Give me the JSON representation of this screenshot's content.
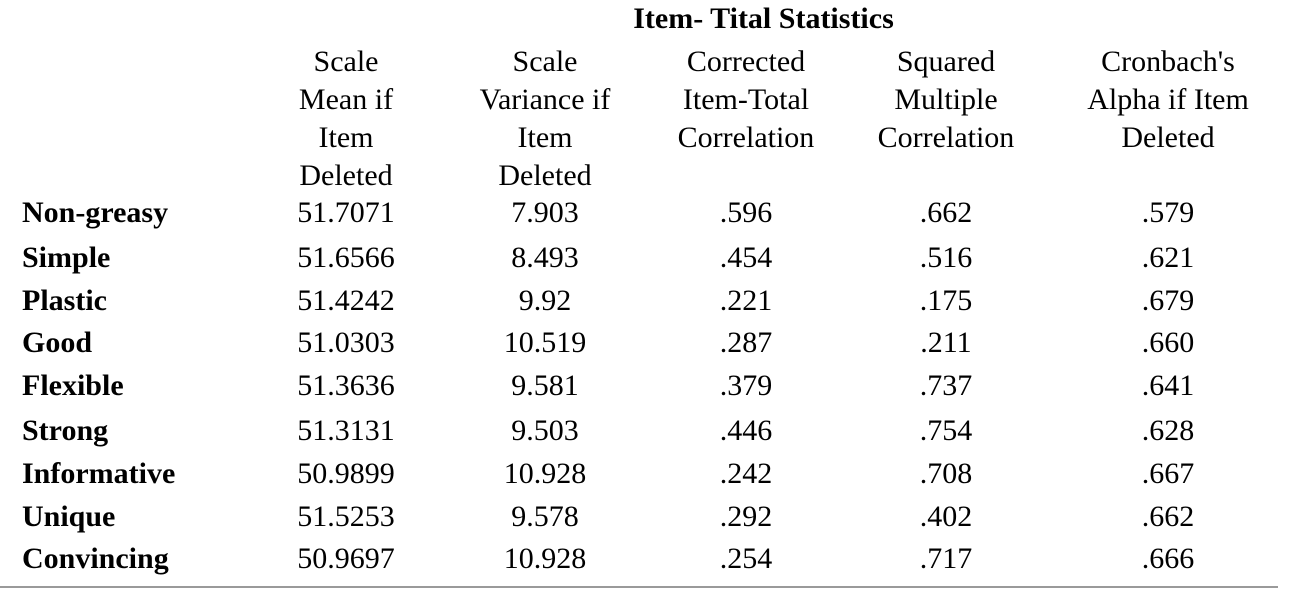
{
  "table": {
    "title": "Item- Tital Statistics",
    "columns": [
      {
        "lines": [
          "Scale",
          "Mean if",
          "Item",
          "Deleted"
        ]
      },
      {
        "lines": [
          "Scale",
          "Variance if",
          "Item",
          "Deleted"
        ]
      },
      {
        "lines": [
          "Corrected",
          "Item-Total",
          "Correlation"
        ]
      },
      {
        "lines": [
          "Squared",
          "Multiple",
          "Correlation"
        ]
      },
      {
        "lines": [
          "Cronbach's",
          "Alpha if Item",
          "Deleted"
        ]
      }
    ],
    "rows": [
      {
        "label": "Non-greasy",
        "values": [
          "51.7071",
          "7.903",
          ".596",
          ".662",
          ".579"
        ]
      },
      {
        "label": "Simple",
        "values": [
          "51.6566",
          "8.493",
          ".454",
          ".516",
          ".621"
        ]
      },
      {
        "label": "Plastic",
        "values": [
          "51.4242",
          "9.92",
          ".221",
          ".175",
          ".679"
        ]
      },
      {
        "label": "Good",
        "values": [
          "51.0303",
          "10.519",
          ".287",
          ".211",
          ".660"
        ]
      },
      {
        "label": "Flexible",
        "values": [
          "51.3636",
          "9.581",
          ".379",
          ".737",
          ".641"
        ]
      },
      {
        "label": "Strong",
        "values": [
          "51.3131",
          "9.503",
          ".446",
          ".754",
          ".628"
        ]
      },
      {
        "label": "Informative",
        "values": [
          "50.9899",
          "10.928",
          ".242",
          ".708",
          ".667"
        ]
      },
      {
        "label": "Unique",
        "values": [
          "51.5253",
          "9.578",
          ".292",
          ".402",
          ".662"
        ]
      },
      {
        "label": "Convincing",
        "values": [
          "50.9697",
          "10.928",
          ".254",
          ".717",
          ".666"
        ]
      }
    ]
  }
}
